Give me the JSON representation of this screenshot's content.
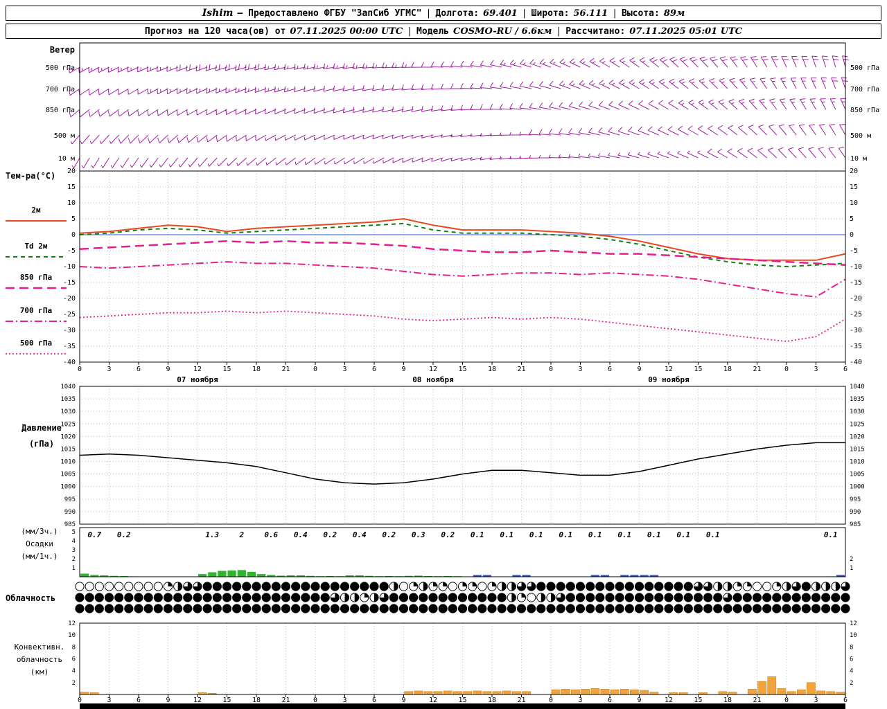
{
  "header": {
    "station": "Ishim",
    "provider": "— Предоставлено ФГБУ \"ЗапСиб УГМС\"",
    "sep": "|",
    "lon_label": "Долгота:",
    "lon_value": "69.401",
    "lat_label": "Широта:",
    "lat_value": "56.111",
    "alt_label": "Высота:",
    "alt_value": "89м",
    "line2_prefix": "Прогноз на 120 часа(ов) от",
    "line2_start": "07.11.2025 00:00 UTC",
    "model_label": "Модель",
    "model_value": "COSMO-RU / 6.6км",
    "calc_label": "Рассчитано:",
    "calc_value": "07.11.2025 05:01 UTC"
  },
  "labels": {
    "wind_title": "Ветер",
    "temp_title": "Тем-ра(°C)",
    "pressure_title1": "Давление",
    "pressure_title2": "(гПа)",
    "precip_title1": "(мм/3ч.)",
    "precip_title2": "Осадки",
    "precip_title3": "(мм/1ч.)",
    "cloud_title": "Облачность",
    "conv_title1": "Конвективн.",
    "conv_title2": "облачность",
    "conv_title3": "(км)"
  },
  "axes": {
    "hour_labels": [
      "0",
      "3",
      "6",
      "9",
      "12",
      "15",
      "18",
      "21",
      "0",
      "3",
      "6",
      "9",
      "12",
      "15",
      "18",
      "21",
      "0",
      "3",
      "6",
      "9",
      "12",
      "15",
      "18",
      "21",
      "0",
      "3",
      "6"
    ],
    "date_labels": [
      "07 ноября",
      "08 ноября",
      "09 ноября"
    ]
  },
  "chart_data": [
    {
      "id": "wind",
      "type": "wind_barbs",
      "color": "#a020a0",
      "x_step_hours": 6,
      "levels": [
        {
          "label": "500 гПа",
          "dirs": [
            240,
            245,
            250,
            255,
            260,
            265,
            270,
            280,
            290,
            300,
            310,
            320,
            335,
            345
          ],
          "speeds": [
            14,
            16,
            18,
            18,
            16,
            14,
            12,
            12,
            14,
            16,
            18,
            18,
            20,
            20
          ]
        },
        {
          "label": "700 гПа",
          "dirs": [
            235,
            240,
            245,
            250,
            255,
            260,
            265,
            275,
            285,
            295,
            305,
            315,
            330,
            340
          ],
          "speeds": [
            12,
            12,
            14,
            14,
            12,
            10,
            10,
            10,
            12,
            14,
            14,
            16,
            16,
            18
          ]
        },
        {
          "label": "850 гПа",
          "dirs": [
            230,
            235,
            240,
            245,
            250,
            255,
            260,
            270,
            280,
            290,
            300,
            310,
            325,
            335
          ],
          "speeds": [
            8,
            10,
            12,
            12,
            10,
            8,
            8,
            8,
            10,
            12,
            12,
            14,
            14,
            14
          ]
        },
        {
          "label": "500 м",
          "dirs": [
            220,
            225,
            230,
            240,
            245,
            250,
            255,
            265,
            275,
            285,
            295,
            305,
            320,
            330
          ],
          "speeds": [
            6,
            8,
            8,
            8,
            6,
            6,
            6,
            6,
            8,
            8,
            10,
            10,
            10,
            12
          ]
        },
        {
          "label": "10 м",
          "dirs": [
            210,
            215,
            220,
            230,
            235,
            240,
            250,
            260,
            270,
            280,
            290,
            300,
            315,
            325
          ],
          "speeds": [
            4,
            5,
            6,
            6,
            5,
            4,
            4,
            4,
            5,
            6,
            6,
            8,
            8,
            8
          ]
        }
      ]
    },
    {
      "id": "temperature",
      "type": "line",
      "ylim": [
        -40,
        20
      ],
      "ytick": 5,
      "x": [
        0,
        3,
        6,
        9,
        12,
        15,
        18,
        21,
        24,
        27,
        30,
        33,
        36,
        39,
        42,
        45,
        48,
        51,
        54,
        57,
        60,
        63,
        66,
        69,
        72,
        75,
        78
      ],
      "series": [
        {
          "name": "2м",
          "color": "#e8481c",
          "dash": "solid",
          "width": 2,
          "values": [
            0.5,
            1,
            2,
            3,
            2.5,
            1,
            2,
            2.5,
            3,
            3.5,
            4,
            5,
            3,
            1.5,
            1.5,
            1.5,
            1,
            0.5,
            -0.5,
            -2,
            -4,
            -6,
            -7.5,
            -8,
            -8,
            -8,
            -6
          ]
        },
        {
          "name": "Td 2м",
          "color": "#128012",
          "dash": "dashed",
          "width": 2,
          "values": [
            0,
            0.5,
            1.5,
            2,
            1.5,
            0.5,
            1,
            1.5,
            2,
            2.5,
            3,
            3.5,
            1.5,
            0.5,
            0.5,
            0.5,
            0,
            -0.5,
            -1.5,
            -3,
            -5,
            -7,
            -8.5,
            -9.5,
            -10,
            -9.5,
            -9
          ]
        },
        {
          "name": "850 гПа",
          "color": "#e61e8c",
          "dash": "longdash",
          "width": 2.5,
          "values": [
            -4.5,
            -4,
            -3.5,
            -3,
            -2.5,
            -2,
            -2.5,
            -2,
            -2.5,
            -2.5,
            -3,
            -3.5,
            -4.5,
            -5,
            -5.5,
            -5.5,
            -5,
            -5.5,
            -6,
            -6,
            -6.5,
            -7,
            -7.5,
            -8,
            -8.5,
            -9,
            -9.5
          ]
        },
        {
          "name": "700 гПа",
          "color": "#e61e8c",
          "dash": "dashdot",
          "width": 2,
          "values": [
            -10,
            -10.5,
            -10,
            -9.5,
            -9,
            -8.5,
            -9,
            -9,
            -9.5,
            -10,
            -10.5,
            -11.5,
            -12.5,
            -13,
            -12.5,
            -12,
            -12,
            -12.5,
            -12,
            -12.5,
            -13,
            -14,
            -15.5,
            -17,
            -18.5,
            -19.5,
            -14
          ]
        },
        {
          "name": "500 гПа",
          "color": "#e61e8c",
          "dash": "dotted",
          "width": 1.8,
          "values": [
            -26,
            -25.5,
            -25,
            -24.5,
            -24.5,
            -24,
            -24.5,
            -24,
            -24.5,
            -25,
            -25.5,
            -26.5,
            -27,
            -26.5,
            -26,
            -26.5,
            -26,
            -26.5,
            -27.5,
            -28.5,
            -29.5,
            -30.5,
            -31.5,
            -32.5,
            -33.5,
            -32,
            -26.5
          ]
        }
      ]
    },
    {
      "id": "pressure",
      "type": "line",
      "ylim": [
        985,
        1040
      ],
      "ytick": 5,
      "x": [
        0,
        3,
        6,
        9,
        12,
        15,
        18,
        21,
        24,
        27,
        30,
        33,
        36,
        39,
        42,
        45,
        48,
        51,
        54,
        57,
        60,
        63,
        66,
        69,
        72,
        75,
        78
      ],
      "series": [
        {
          "name": "Давление (гПа)",
          "color": "#000000",
          "dash": "solid",
          "width": 1.5,
          "values": [
            1012.5,
            1013,
            1012.5,
            1011.5,
            1010.5,
            1009.5,
            1008,
            1005.5,
            1003,
            1001.5,
            1001,
            1001.5,
            1003,
            1005,
            1006.5,
            1006.5,
            1005.5,
            1004.5,
            1004.5,
            1006,
            1008.5,
            1011,
            1013,
            1015,
            1016.5,
            1017.5,
            1017.5
          ]
        }
      ]
    },
    {
      "id": "precipitation",
      "type": "bar",
      "ylim": [
        0,
        5
      ],
      "labels_3h": [
        "0.7",
        "0.2",
        "",
        "",
        "1.3",
        "2",
        "0.6",
        "0.4",
        "0.2",
        "0.4",
        "0.2",
        "0.3",
        "0.2",
        "0.1",
        "0.1",
        "0.1",
        "0.1",
        "0.1",
        "0.1",
        "0.1",
        "0.1",
        "0.1",
        "",
        "",
        "",
        "0.1"
      ],
      "hourly": [
        0.35,
        0.2,
        0.15,
        0.1,
        0.08,
        0.05,
        0,
        0,
        0,
        0,
        0,
        0,
        0.3,
        0.5,
        0.65,
        0.7,
        0.75,
        0.55,
        0.3,
        0.2,
        0.12,
        0.15,
        0.15,
        0.1,
        0.06,
        0.08,
        0.06,
        0.15,
        0.15,
        0.1,
        0.06,
        0.08,
        0.06,
        0.1,
        0.12,
        0.08,
        0.06,
        0.08,
        0.06,
        0.04,
        0.04,
        0.04,
        0.04,
        0.04,
        0.04,
        0.04,
        0.04,
        0.04,
        0.04,
        0.04,
        0.04,
        0.04,
        0.04,
        0.04,
        0.04,
        0.04,
        0.04,
        0.04,
        0.04,
        0.04,
        0.04,
        0.04,
        0.04,
        0.04,
        0.04,
        0.04,
        0,
        0,
        0,
        0,
        0,
        0,
        0,
        0,
        0,
        0.03,
        0.05,
        0.03
      ],
      "blue_hours": [
        40,
        41,
        44,
        45,
        52,
        53,
        55,
        56,
        57,
        58,
        77
      ],
      "bar_color": "#2db52d",
      "accent_color": "#2f4fd0",
      "label_color": "#34435e",
      "left_ticks": [
        5,
        4,
        3,
        2,
        1
      ],
      "right_ticks": [
        2,
        1
      ]
    },
    {
      "id": "cloud",
      "type": "symbols",
      "patterns": [
        "0000000001233444444444444444444420121101101223344444444444444443322110012342223",
        "4444444444444444444444444432212344444444444421022344444444444444443444444444444",
        "4444444444444444444444444444444444444444444444444444444444444444444444444444444"
      ]
    },
    {
      "id": "convective",
      "type": "bar",
      "ylim": [
        0,
        12
      ],
      "ytick": 2,
      "hourly": [
        0.4,
        0.3,
        0,
        0,
        0,
        0,
        0,
        0,
        0,
        0,
        0,
        0,
        0.3,
        0.2,
        0,
        0,
        0,
        0,
        0,
        0,
        0,
        0,
        0,
        0,
        0,
        0,
        0,
        0,
        0,
        0,
        0,
        0,
        0,
        0.5,
        0.6,
        0.5,
        0.5,
        0.6,
        0.5,
        0.5,
        0.6,
        0.5,
        0.5,
        0.6,
        0.5,
        0.5,
        0,
        0,
        0.8,
        0.9,
        0.8,
        0.9,
        1,
        0.9,
        0.8,
        0.9,
        0.8,
        0.7,
        0.4,
        0,
        0.3,
        0.3,
        0,
        0.3,
        0,
        0.5,
        0.4,
        0,
        0.9,
        2.2,
        3,
        1,
        0.5,
        0.8,
        2,
        0.6,
        0.5,
        0.4
      ],
      "bar_color": "#f2a33c"
    }
  ]
}
